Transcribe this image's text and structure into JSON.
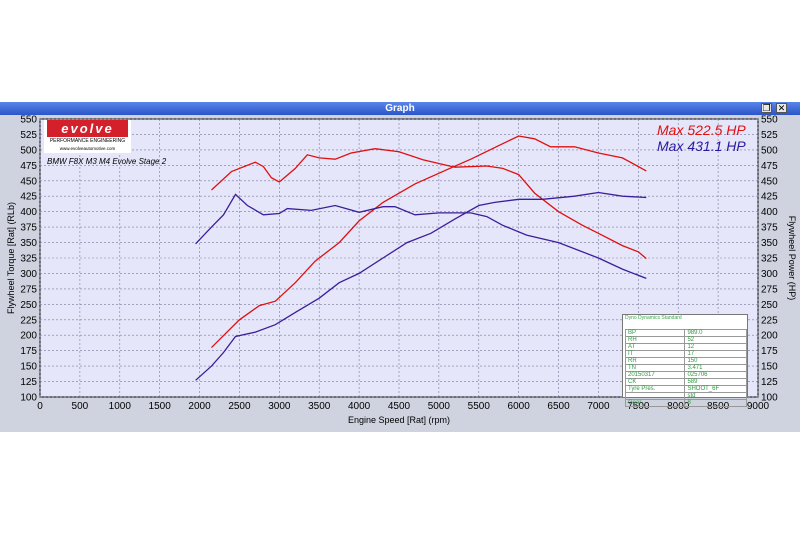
{
  "window": {
    "title": "Graph"
  },
  "logo": {
    "brand": "evolve",
    "tagline": "PERFORMANCE ENGINEERING",
    "url": "www.evolveautomotive.com"
  },
  "run_title": "BMW F8X M3 M4 Evolve Stage 2",
  "max_labels": {
    "red": "Max 522.5 HP",
    "blue": "Max 431.1 HP"
  },
  "colors": {
    "plot_bg": "#e6e6fa",
    "grid": "#7a7a9a",
    "red": "#e01010",
    "blue": "#3a1f9a",
    "window_bg": "#cfd3df",
    "titlebar": "#2a55c9"
  },
  "info_panel": {
    "header": "Dyno Dynamics Standard",
    "rows": [
      [
        "BP",
        "989.0"
      ],
      [
        "RH",
        "52"
      ],
      [
        "AT",
        "12"
      ],
      [
        "IT",
        "17"
      ],
      [
        "RR",
        "150"
      ],
      [
        "TN",
        "3.471"
      ],
      [
        "20150317",
        "025706"
      ],
      [
        "CK",
        "589"
      ],
      [
        "Tyre Pres.",
        "SHOOT_6F"
      ],
      [
        "",
        "std"
      ],
      [
        "Gear",
        "8"
      ]
    ]
  },
  "chart_data": {
    "type": "line",
    "xlabel": "Engine Speed [Rat] (rpm)",
    "ylabel_left": "Flywheel Torque [Rat] (RLb)",
    "ylabel_right": "Flywheel Power (HP)",
    "xlim": [
      0,
      9000
    ],
    "ylim": [
      100,
      550
    ],
    "x_ticks": [
      0,
      500,
      1000,
      1500,
      2000,
      2500,
      3000,
      3500,
      4000,
      4500,
      5000,
      5500,
      6000,
      6500,
      7000,
      7500,
      8000,
      8500,
      9000
    ],
    "y_ticks": [
      100,
      125,
      150,
      175,
      200,
      225,
      250,
      275,
      300,
      325,
      350,
      375,
      400,
      425,
      450,
      475,
      500,
      525,
      550
    ],
    "grid": true,
    "series": [
      {
        "color": "red",
        "points": [
          [
            2150,
            435
          ],
          [
            2400,
            465
          ],
          [
            2700,
            480
          ],
          [
            2800,
            473
          ],
          [
            2900,
            455
          ],
          [
            3000,
            448
          ],
          [
            3200,
            470
          ],
          [
            3350,
            492
          ],
          [
            3500,
            487
          ],
          [
            3700,
            485
          ],
          [
            3900,
            495
          ],
          [
            4200,
            502
          ],
          [
            4500,
            497
          ],
          [
            4800,
            484
          ],
          [
            5200,
            472
          ],
          [
            5600,
            474
          ],
          [
            5800,
            470
          ],
          [
            6000,
            460
          ],
          [
            6200,
            430
          ],
          [
            6500,
            400
          ],
          [
            6800,
            378
          ],
          [
            7000,
            365
          ],
          [
            7300,
            345
          ],
          [
            7500,
            335
          ],
          [
            7600,
            324
          ]
        ]
      },
      {
        "color": "red",
        "points": [
          [
            2150,
            180
          ],
          [
            2500,
            225
          ],
          [
            2750,
            248
          ],
          [
            2950,
            255
          ],
          [
            3200,
            285
          ],
          [
            3450,
            320
          ],
          [
            3750,
            350
          ],
          [
            4000,
            385
          ],
          [
            4300,
            415
          ],
          [
            4700,
            445
          ],
          [
            5100,
            468
          ],
          [
            5400,
            485
          ],
          [
            5800,
            510
          ],
          [
            6000,
            522.5
          ],
          [
            6200,
            518
          ],
          [
            6400,
            505
          ],
          [
            6700,
            505
          ],
          [
            7000,
            495
          ],
          [
            7300,
            487
          ],
          [
            7600,
            466
          ]
        ]
      },
      {
        "color": "blue",
        "points": [
          [
            1950,
            348
          ],
          [
            2150,
            375
          ],
          [
            2300,
            395
          ],
          [
            2450,
            428
          ],
          [
            2600,
            410
          ],
          [
            2800,
            395
          ],
          [
            3000,
            397
          ],
          [
            3100,
            405
          ],
          [
            3400,
            402
          ],
          [
            3700,
            410
          ],
          [
            4000,
            399
          ],
          [
            4300,
            408
          ],
          [
            4450,
            408
          ],
          [
            4700,
            395
          ],
          [
            5000,
            398
          ],
          [
            5400,
            398
          ],
          [
            5600,
            392
          ],
          [
            5800,
            378
          ],
          [
            6100,
            362
          ],
          [
            6500,
            350
          ],
          [
            7000,
            325
          ],
          [
            7300,
            307
          ],
          [
            7600,
            292
          ]
        ]
      },
      {
        "color": "blue",
        "points": [
          [
            1950,
            127
          ],
          [
            2150,
            150
          ],
          [
            2300,
            172
          ],
          [
            2450,
            198
          ],
          [
            2700,
            205
          ],
          [
            2950,
            217
          ],
          [
            3200,
            237
          ],
          [
            3500,
            260
          ],
          [
            3750,
            285
          ],
          [
            4000,
            300
          ],
          [
            4300,
            325
          ],
          [
            4600,
            350
          ],
          [
            4900,
            365
          ],
          [
            5200,
            388
          ],
          [
            5500,
            410
          ],
          [
            5700,
            415
          ],
          [
            6000,
            420
          ],
          [
            6300,
            420
          ],
          [
            6700,
            425
          ],
          [
            7000,
            431.1
          ],
          [
            7300,
            425
          ],
          [
            7600,
            423
          ]
        ]
      }
    ]
  }
}
